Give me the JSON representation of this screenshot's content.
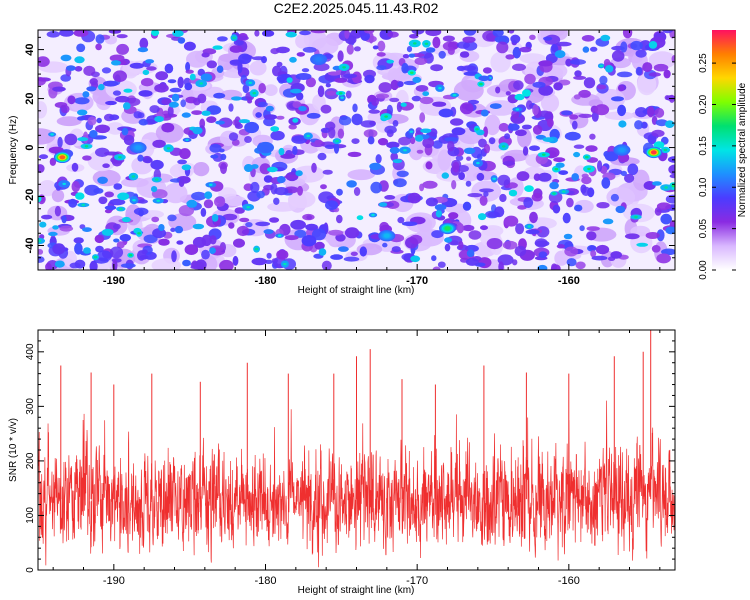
{
  "figure_title": "C2E2.2025.045.11.43.R02",
  "chart_data": [
    {
      "type": "heatmap",
      "title": "C2E2.2025.045.11.43.R02",
      "xlabel": "Height of straight line (km)",
      "ylabel": "Frequency (Hz)",
      "xlim": [
        -195,
        -153
      ],
      "ylim": [
        -50,
        48
      ],
      "x_ticks": [
        -190,
        -180,
        -170,
        -160
      ],
      "x_tick_labels": [
        "-190",
        "-180",
        "-170",
        "-160"
      ],
      "y_ticks": [
        -40,
        -20,
        0,
        20,
        40
      ],
      "y_tick_labels": [
        "-40",
        "-20",
        "0",
        "20",
        "40"
      ],
      "colorbar": {
        "label": "Normalized spectral amplitude",
        "range": [
          0,
          0.29
        ],
        "ticks": [
          0.0,
          0.05,
          0.1,
          0.15,
          0.2,
          0.25
        ],
        "tick_labels": [
          "0.00",
          "0.05",
          "0.10",
          "0.15",
          "0.20",
          "0.25"
        ],
        "colors": [
          "#ffffff",
          "#d9b8ff",
          "#8a2be2",
          "#4b3cff",
          "#1e90ff",
          "#00e5e5",
          "#00e070",
          "#7fff00",
          "#ffd700",
          "#ff7f00",
          "#ff1060"
        ]
      },
      "hotspots": [
        {
          "x": -193.4,
          "y": -4,
          "value": 0.27
        },
        {
          "x": -154.4,
          "y": -2,
          "value": 0.28
        },
        {
          "x": -156.5,
          "y": -1,
          "value": 0.12
        },
        {
          "x": -168.0,
          "y": -33,
          "value": 0.18
        },
        {
          "x": -172.0,
          "y": -36,
          "value": 0.13
        },
        {
          "x": -188.4,
          "y": 0,
          "value": 0.12
        },
        {
          "x": -176.5,
          "y": 36,
          "value": 0.11
        },
        {
          "x": -180.0,
          "y": 0,
          "value": 0.1
        }
      ],
      "grid": false,
      "legend": "colorbar-right"
    },
    {
      "type": "line",
      "xlabel": "Height of straight line (km)",
      "ylabel": "SNR (10 * v/v)",
      "xlim": [
        -195,
        -153
      ],
      "ylim": [
        0,
        440
      ],
      "x_ticks": [
        -190,
        -180,
        -170,
        -160
      ],
      "x_tick_labels": [
        "-190",
        "-180",
        "-170",
        "-160"
      ],
      "y_ticks": [
        0,
        100,
        200,
        300,
        400
      ],
      "y_tick_labels": [
        "0",
        "100",
        "200",
        "300",
        "400"
      ],
      "series_color": "#ef2f2f",
      "baseline_mean": 130,
      "band": [
        40,
        260
      ],
      "peaks": [
        {
          "x": -193.5,
          "y": 375
        },
        {
          "x": -191.5,
          "y": 362
        },
        {
          "x": -190.0,
          "y": 340
        },
        {
          "x": -187.5,
          "y": 360
        },
        {
          "x": -184.3,
          "y": 345
        },
        {
          "x": -181.2,
          "y": 380
        },
        {
          "x": -178.5,
          "y": 360
        },
        {
          "x": -175.5,
          "y": 360
        },
        {
          "x": -174.0,
          "y": 392
        },
        {
          "x": -173.1,
          "y": 405
        },
        {
          "x": -171.0,
          "y": 350
        },
        {
          "x": -168.8,
          "y": 340
        },
        {
          "x": -165.6,
          "y": 375
        },
        {
          "x": -162.8,
          "y": 362
        },
        {
          "x": -160.0,
          "y": 360
        },
        {
          "x": -157.0,
          "y": 392
        },
        {
          "x": -155.1,
          "y": 400
        },
        {
          "x": -154.6,
          "y": 440
        }
      ],
      "grid": false
    }
  ]
}
